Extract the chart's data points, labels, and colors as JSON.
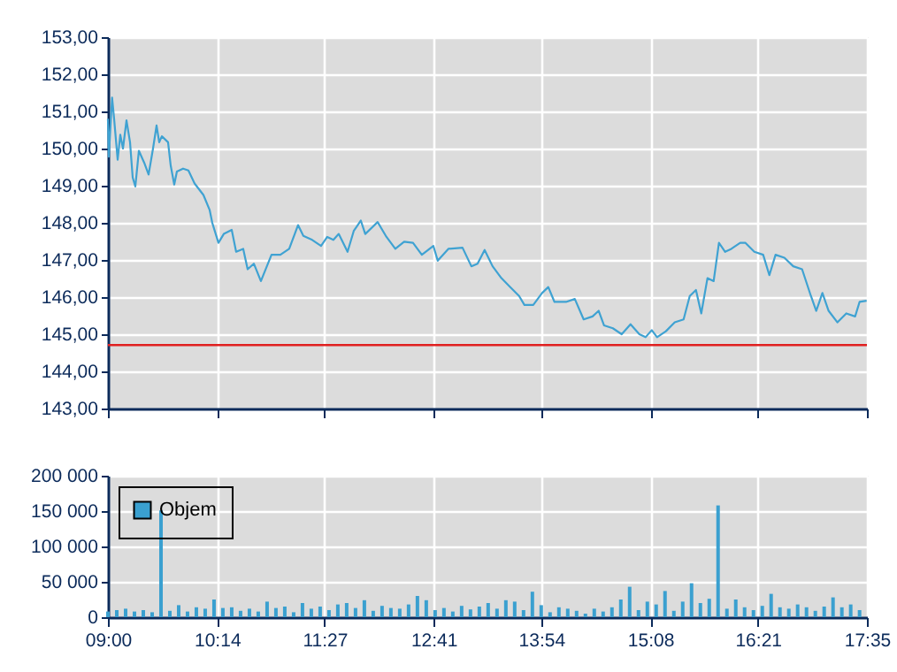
{
  "chart_data": [
    {
      "type": "line",
      "xlim": [
        9,
        17.58333
      ],
      "ylim": [
        143,
        153
      ],
      "xticks": [
        {
          "value": 9,
          "label": null
        },
        {
          "value": 10.23333,
          "label": null
        },
        {
          "value": 11.45,
          "label": null
        },
        {
          "value": 12.68333,
          "label": null
        },
        {
          "value": 13.9,
          "label": null
        },
        {
          "value": 15.13333,
          "label": null
        },
        {
          "value": 16.35,
          "label": null
        },
        {
          "value": 17.58333,
          "label": null
        }
      ],
      "yticks": [
        {
          "value": 143,
          "label": "143,00"
        },
        {
          "value": 144,
          "label": "144,00"
        },
        {
          "value": 145,
          "label": "145,00"
        },
        {
          "value": 146,
          "label": "146,00"
        },
        {
          "value": 147,
          "label": "147,00"
        },
        {
          "value": 148,
          "label": "148,00"
        },
        {
          "value": 149,
          "label": "149,00"
        },
        {
          "value": 150,
          "label": "150,00"
        },
        {
          "value": 151,
          "label": "151,00"
        },
        {
          "value": 152,
          "label": "152,00"
        },
        {
          "value": 153,
          "label": "153,00"
        }
      ],
      "tick_labels": "y",
      "grid": true,
      "ref_lines": [
        {
          "axis": "y",
          "value": 144.71,
          "color": "#e02020"
        }
      ],
      "series": [
        {
          "color": "#3fa2d2",
          "x": [
            9.0,
            9.01,
            9.047,
            9.07,
            9.11,
            9.14,
            9.17,
            9.21,
            9.25,
            9.28,
            9.31,
            9.35,
            9.41,
            9.46,
            9.51,
            9.55,
            9.58,
            9.61,
            9.68,
            9.71,
            9.75,
            9.78,
            9.85,
            9.91,
            9.98,
            10.08,
            10.15,
            10.18,
            10.25,
            10.31,
            10.4,
            10.45,
            10.53,
            10.58,
            10.65,
            10.73,
            10.85,
            10.95,
            11.05,
            11.15,
            11.21,
            11.31,
            11.41,
            11.48,
            11.55,
            11.61,
            11.71,
            11.78,
            11.86,
            11.91,
            12.05,
            12.15,
            12.25,
            12.35,
            12.45,
            12.55,
            12.68,
            12.73,
            12.85,
            13.01,
            13.11,
            13.18,
            13.26,
            13.35,
            13.45,
            13.55,
            13.65,
            13.71,
            13.81,
            13.91,
            13.98,
            14.05,
            14.18,
            14.28,
            14.38,
            14.48,
            14.55,
            14.61,
            14.71,
            14.81,
            14.91,
            15.01,
            15.08,
            15.15,
            15.21,
            15.31,
            15.41,
            15.51,
            15.58,
            15.65,
            15.71,
            15.78,
            15.85,
            15.91,
            15.98,
            16.05,
            16.15,
            16.21,
            16.31,
            16.41,
            16.48,
            16.55,
            16.65,
            16.75,
            16.85,
            16.95,
            17.01,
            17.08,
            17.15,
            17.25,
            17.35,
            17.45,
            17.5,
            17.58
          ],
          "values": [
            150.8,
            149.78,
            151.37,
            150.8,
            149.7,
            150.37,
            150.0,
            150.76,
            150.17,
            149.22,
            148.98,
            149.94,
            149.62,
            149.3,
            150.0,
            150.62,
            150.17,
            150.33,
            150.17,
            149.54,
            149.03,
            149.38,
            149.46,
            149.41,
            149.06,
            148.75,
            148.35,
            148.0,
            147.46,
            147.7,
            147.81,
            147.22,
            147.3,
            146.75,
            146.9,
            146.43,
            147.14,
            147.14,
            147.3,
            147.94,
            147.65,
            147.54,
            147.38,
            147.62,
            147.54,
            147.7,
            147.22,
            147.78,
            148.06,
            147.7,
            148.02,
            147.62,
            147.3,
            147.49,
            147.46,
            147.14,
            147.38,
            146.98,
            147.3,
            147.33,
            146.83,
            146.9,
            147.27,
            146.83,
            146.51,
            146.27,
            146.03,
            145.79,
            145.79,
            146.11,
            146.27,
            145.87,
            145.87,
            145.95,
            145.4,
            145.48,
            145.63,
            145.24,
            145.16,
            145.0,
            145.27,
            145.0,
            144.92,
            145.11,
            144.92,
            145.08,
            145.32,
            145.4,
            146.03,
            146.19,
            145.56,
            146.51,
            146.43,
            147.46,
            147.22,
            147.3,
            147.46,
            147.46,
            147.22,
            147.14,
            146.59,
            147.14,
            147.06,
            146.83,
            146.75,
            146.03,
            145.63,
            146.11,
            145.63,
            145.32,
            145.56,
            145.48,
            145.87,
            145.9
          ]
        }
      ]
    },
    {
      "type": "bar",
      "xlim": [
        9,
        17.58333
      ],
      "ylim": [
        0,
        200000
      ],
      "xticks": [
        {
          "value": 9,
          "label": "09:00"
        },
        {
          "value": 10.23333,
          "label": "10:14"
        },
        {
          "value": 11.45,
          "label": "11:27"
        },
        {
          "value": 12.68333,
          "label": "12:41"
        },
        {
          "value": 13.9,
          "label": "13:54"
        },
        {
          "value": 15.13333,
          "label": "15:08"
        },
        {
          "value": 16.35,
          "label": "16:21"
        },
        {
          "value": 17.58333,
          "label": "17:35"
        }
      ],
      "yticks": [
        0,
        {
          "value": 50000,
          "label": "50 000"
        },
        {
          "value": 100000,
          "label": "100 000"
        },
        {
          "value": 150000,
          "label": "150 000"
        },
        {
          "value": 200000,
          "label": "200 000"
        }
      ],
      "grid": true,
      "legend": "top left",
      "series": [
        {
          "name": "Objem",
          "color": "#3aa0d0",
          "x": [
            9.0,
            9.1,
            9.2,
            9.3,
            9.4,
            9.5,
            9.6,
            9.7,
            9.8,
            9.9,
            10.0,
            10.1,
            10.2,
            10.3,
            10.4,
            10.5,
            10.6,
            10.7,
            10.8,
            10.9,
            11.0,
            11.1,
            11.2,
            11.3,
            11.4,
            11.5,
            11.6,
            11.7,
            11.8,
            11.9,
            12.0,
            12.1,
            12.2,
            12.3,
            12.4,
            12.5,
            12.6,
            12.7,
            12.8,
            12.9,
            13.0,
            13.1,
            13.2,
            13.3,
            13.4,
            13.5,
            13.6,
            13.7,
            13.8,
            13.9,
            14.0,
            14.1,
            14.2,
            14.3,
            14.4,
            14.5,
            14.6,
            14.7,
            14.8,
            14.9,
            15.0,
            15.1,
            15.2,
            15.3,
            15.4,
            15.5,
            15.6,
            15.7,
            15.8,
            15.9,
            16.0,
            16.1,
            16.2,
            16.3,
            16.4,
            16.5,
            16.6,
            16.7,
            16.8,
            16.9,
            17.0,
            17.1,
            17.2,
            17.3,
            17.4,
            17.5
          ],
          "values": [
            8000,
            10000,
            12000,
            8000,
            10000,
            7000,
            151000,
            9000,
            17000,
            8000,
            14000,
            12000,
            25000,
            13000,
            14000,
            9000,
            12000,
            8000,
            22000,
            13000,
            15000,
            7000,
            20000,
            12000,
            15000,
            10000,
            18000,
            20000,
            13000,
            24000,
            9000,
            16000,
            13000,
            12000,
            18000,
            30000,
            24000,
            10000,
            13000,
            8000,
            16000,
            11000,
            15000,
            20000,
            12000,
            24000,
            22000,
            10000,
            36000,
            17000,
            7000,
            14000,
            12000,
            9000,
            5000,
            12000,
            8000,
            14000,
            25000,
            43000,
            10000,
            22000,
            18000,
            37000,
            9000,
            22000,
            48000,
            20000,
            26000,
            158000,
            12000,
            25000,
            14000,
            10000,
            16000,
            33000,
            14000,
            12000,
            18000,
            14000,
            9000,
            15000,
            28000,
            14000,
            18000,
            10000
          ]
        }
      ]
    }
  ]
}
